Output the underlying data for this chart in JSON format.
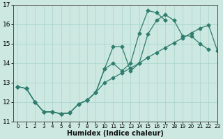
{
  "color": "#2e7d6e",
  "bg_color": "#cce8e0",
  "grid_color": "#a8d4cc",
  "xlabel": "Humidex (Indice chaleur)",
  "ylim": [
    11,
    17
  ],
  "xlim": [
    -0.5,
    23
  ],
  "yticks": [
    11,
    12,
    13,
    14,
    15,
    16,
    17
  ],
  "xticks": [
    0,
    1,
    2,
    3,
    4,
    5,
    6,
    7,
    8,
    9,
    10,
    11,
    12,
    13,
    14,
    15,
    16,
    17,
    18,
    19,
    20,
    21,
    22,
    23
  ],
  "line1_x": [
    0,
    1,
    2,
    3,
    4,
    5,
    6,
    7,
    8,
    9,
    10,
    11,
    12,
    13,
    14,
    15,
    16,
    17,
    18,
    19,
    20,
    21,
    22,
    23
  ],
  "line1_y": [
    12.8,
    12.7,
    12.0,
    11.5,
    11.5,
    11.4,
    11.45,
    11.9,
    12.1,
    12.5,
    13.0,
    13.25,
    13.5,
    13.75,
    14.0,
    14.3,
    14.55,
    14.8,
    15.05,
    15.3,
    15.55,
    15.8,
    15.95,
    14.65
  ],
  "line2_x": [
    0,
    1,
    2,
    3,
    4,
    5,
    6,
    7,
    8,
    9,
    10,
    11,
    12,
    13,
    14,
    15,
    16,
    17,
    18,
    19,
    20,
    21,
    22
  ],
  "line2_y": [
    12.8,
    12.7,
    12.0,
    11.5,
    11.5,
    11.4,
    11.45,
    11.9,
    12.1,
    12.5,
    13.7,
    14.85,
    14.85,
    13.6,
    14.0,
    15.5,
    16.2,
    16.5,
    16.2,
    15.4,
    15.4,
    15.0,
    14.7
  ],
  "line3_x": [
    0,
    1,
    2,
    3,
    4,
    5,
    6,
    7,
    8,
    9,
    10,
    11,
    12,
    13,
    14,
    15,
    16,
    17,
    18,
    19,
    20,
    21,
    22
  ],
  "line3_y": [
    12.8,
    12.7,
    12.0,
    11.5,
    11.5,
    11.4,
    11.45,
    11.9,
    12.1,
    12.5,
    13.7,
    14.0,
    13.6,
    14.0,
    15.55,
    16.7,
    16.6,
    16.2,
    null,
    null,
    null,
    null,
    null
  ]
}
